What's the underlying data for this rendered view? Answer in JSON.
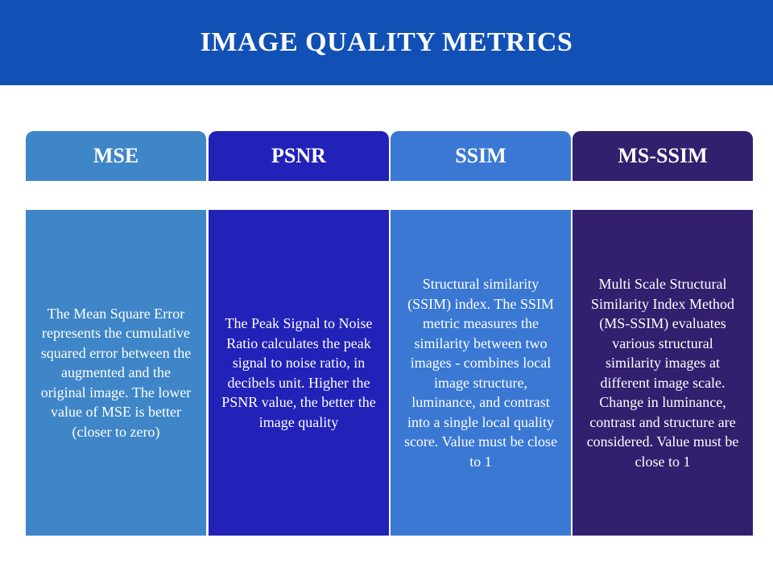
{
  "title": "IMAGE QUALITY METRICS",
  "colors": {
    "header_bg": "#1150b5",
    "mse": "#3f86c8",
    "psnr": "#2222b8",
    "ssim": "#3a78d4",
    "ms_ssim": "#321f6e"
  },
  "columns": [
    {
      "label": "MSE",
      "description": "The Mean Square Error represents the cumulative squared error between the augmented and the original image. The lower value of MSE is better (closer to zero)"
    },
    {
      "label": "PSNR",
      "description": "The Peak Signal to Noise Ratio calculates the peak signal to noise ratio, in decibels unit. Higher the PSNR value, the better the image quality"
    },
    {
      "label": "SSIM",
      "description": "Structural similarity (SSIM) index. The SSIM metric measures the similarity between two images - combines local image structure, luminance, and contrast into a single local quality score. Value must be close to 1"
    },
    {
      "label": "MS-SSIM",
      "description": "Multi Scale Structural Similarity Index Method (MS-SSIM) evaluates various structural similarity images at different image scale. Change in luminance, contrast and structure are considered. Value must be close to 1"
    }
  ]
}
